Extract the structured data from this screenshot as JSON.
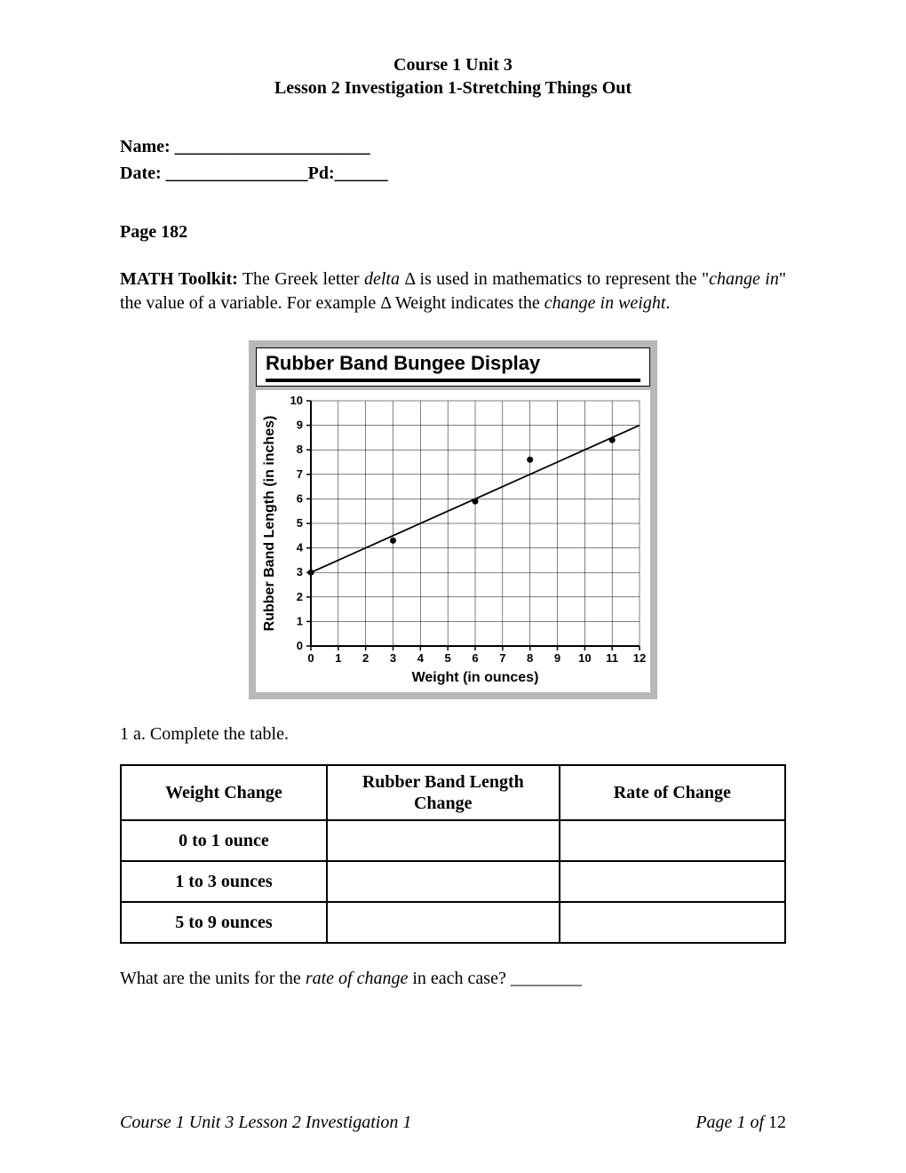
{
  "header": {
    "line1": "Course 1 Unit 3",
    "line2": "Lesson 2 Investigation 1-Stretching Things Out"
  },
  "name_date": {
    "name_label": "Name: ______________________",
    "date_label": "Date: ________________",
    "pd_label": "Pd:______"
  },
  "page_ref": "Page 182",
  "toolkit": {
    "label": "MATH Toolkit:",
    "text_a": " The Greek letter ",
    "delta_word": "delta",
    "text_b": " Δ is used in mathematics to represent the \"",
    "change_in": "change in",
    "text_c": "\" the value of a variable.  For example Δ Weight indicates the ",
    "change_in_weight": "change in weight",
    "text_d": "."
  },
  "chart": {
    "title": "Rubber Band Bungee Display",
    "xlabel": "Weight (in ounces)",
    "ylabel": "Rubber Band Length (in inches)",
    "xlim": [
      0,
      12
    ],
    "ylim": [
      0,
      10
    ],
    "xticks": [
      0,
      1,
      2,
      3,
      4,
      5,
      6,
      7,
      8,
      9,
      10,
      11,
      12
    ],
    "yticks": [
      0,
      1,
      2,
      3,
      4,
      5,
      6,
      7,
      8,
      9,
      10
    ],
    "points": [
      {
        "x": 0,
        "y": 3
      },
      {
        "x": 3,
        "y": 4.3
      },
      {
        "x": 6,
        "y": 5.9
      },
      {
        "x": 8,
        "y": 7.6
      },
      {
        "x": 11,
        "y": 8.4
      }
    ],
    "line": {
      "x1": 0,
      "y1": 3,
      "x2": 12,
      "y2": 9
    },
    "bg_color": "#b8b8b8",
    "plot_bg": "#ffffff",
    "grid_color": "#000000",
    "axis_color": "#000000",
    "point_color": "#000000",
    "line_color": "#000000",
    "title_fontsize": 22,
    "axis_label_fontsize": 16,
    "tick_fontsize": 13,
    "axis_font": "Arial"
  },
  "q1a": "1 a.  Complete the table.",
  "table": {
    "columns": [
      "Weight Change",
      "Rubber Band Length Change",
      "Rate of Change"
    ],
    "rows": [
      [
        "0 to 1 ounce",
        "",
        ""
      ],
      [
        "1 to 3 ounces",
        "",
        ""
      ],
      [
        "5 to 9 ounces",
        "",
        ""
      ]
    ],
    "col_widths_pct": [
      31,
      35,
      34
    ]
  },
  "units_q": {
    "text_a": "What are the units for the ",
    "italic": "rate of change",
    "text_b": " in each case?  ________"
  },
  "footer": {
    "left": "Course 1 Unit 3 Lesson 2 Investigation 1",
    "right_it": "Page 1 of ",
    "right_num": "12"
  }
}
